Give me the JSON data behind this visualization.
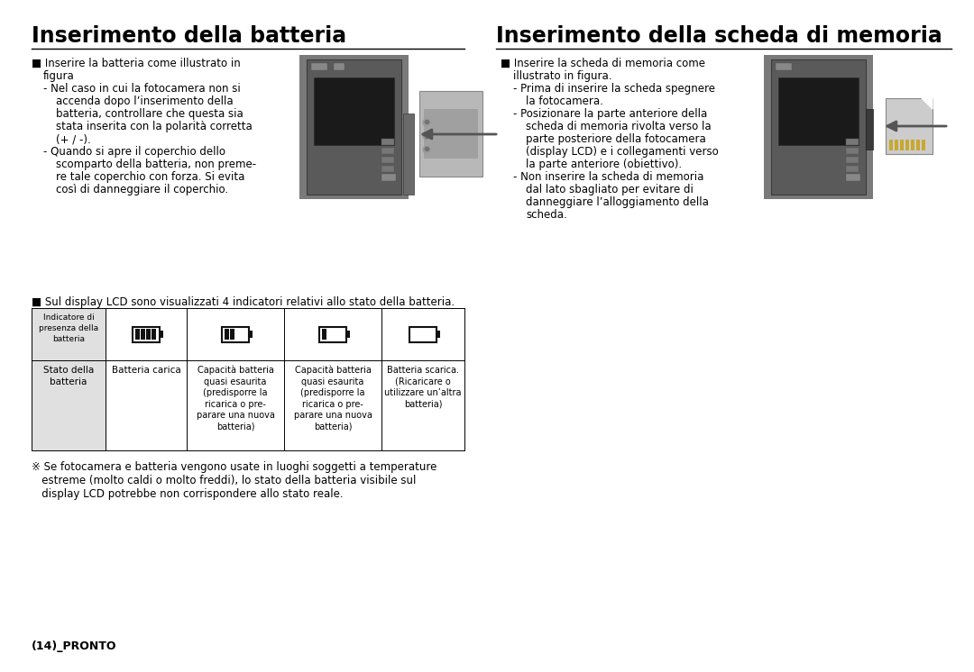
{
  "title_left": "Inserimento della batteria",
  "title_right": "Inserimento della scheda di memoria",
  "bg_color": "#ffffff",
  "text_color": "#000000",
  "left_lines": [
    [
      35,
      "■ Inserire la batteria come illustrato in",
      8.5,
      "normal",
      0
    ],
    [
      48,
      "figura",
      8.5,
      "normal",
      0
    ],
    [
      48,
      "- Nel caso in cui la fotocamera non si",
      8.5,
      "normal",
      1
    ],
    [
      62,
      "accenda dopo l’inserimento della",
      8.5,
      "normal",
      1
    ],
    [
      62,
      "batteria, controllare che questa sia",
      8.5,
      "normal",
      1
    ],
    [
      62,
      "stata inserita con la polarità corretta",
      8.5,
      "normal",
      1
    ],
    [
      62,
      "(+ / -).",
      8.5,
      "normal",
      1
    ],
    [
      48,
      "- Quando si apre il coperchio dello",
      8.5,
      "normal",
      1
    ],
    [
      62,
      "scomparto della batteria, non preme-",
      8.5,
      "normal",
      1
    ],
    [
      62,
      "re tale coperchio con forza. Si evita",
      8.5,
      "normal",
      1
    ],
    [
      62,
      "così di danneggiare il coperchio.",
      8.5,
      "normal",
      1
    ]
  ],
  "right_lines": [
    [
      555,
      "■ Inserire la scheda di memoria come",
      8.5,
      "normal",
      0
    ],
    [
      569,
      "illustrato in figura.",
      8.5,
      "normal",
      0
    ],
    [
      569,
      "- Prima di inserire la scheda spegnere",
      8.5,
      "normal",
      1
    ],
    [
      583,
      "la fotocamera.",
      8.5,
      "normal",
      1
    ],
    [
      569,
      "- Posizionare la parte anteriore della",
      8.5,
      "normal",
      1
    ],
    [
      583,
      "scheda di memoria rivolta verso la",
      8.5,
      "normal",
      1
    ],
    [
      583,
      "parte posteriore della fotocamera",
      8.5,
      "normal",
      1
    ],
    [
      583,
      "(display LCD) e i collegamenti verso",
      8.5,
      "normal",
      1
    ],
    [
      583,
      "la parte anteriore (obiettivo).",
      8.5,
      "normal",
      1
    ],
    [
      569,
      "- Non inserire la scheda di memoria",
      8.5,
      "normal",
      1
    ],
    [
      583,
      "dal lato sbagliato per evitare di",
      8.5,
      "normal",
      1
    ],
    [
      583,
      "danneggiare l’alloggiamento della",
      8.5,
      "normal",
      1
    ],
    [
      583,
      "scheda.",
      8.5,
      "normal",
      1
    ]
  ],
  "lcd_note": "■ Sul display LCD sono visualizzati 4 indicatori relativi allo stato della batteria.",
  "table_header_col0": "Indicatore di\npresenza della\nbatteria",
  "table_status_label": "Stato della\nbatteria",
  "table_col1_status": "Batteria carica",
  "table_col2_status": "Capacità batteria\nquasi esaurita\n(predisporre la\nricarica o pre-\nparare una nuova\nbatteria)",
  "table_col3_status": "Capacità batteria\nquasi esaurita\n(predisporre la\nricarica o pre-\nparare una nuova\nbatteria)",
  "table_col4_status": "Batteria scarica.\n(Ricaricare o\nutilizzare un’altra\nbatteria)",
  "warning_note1": "※ Se fotocamera e batteria vengono usate in luoghi soggetti a temperature",
  "warning_note2": "   estreme (molto caldi o molto freddi), lo stato della batteria visibile sul",
  "warning_note3": "   display LCD potrebbe non corrispondere allo stato reale.",
  "footer": "(14)_PRONTO"
}
